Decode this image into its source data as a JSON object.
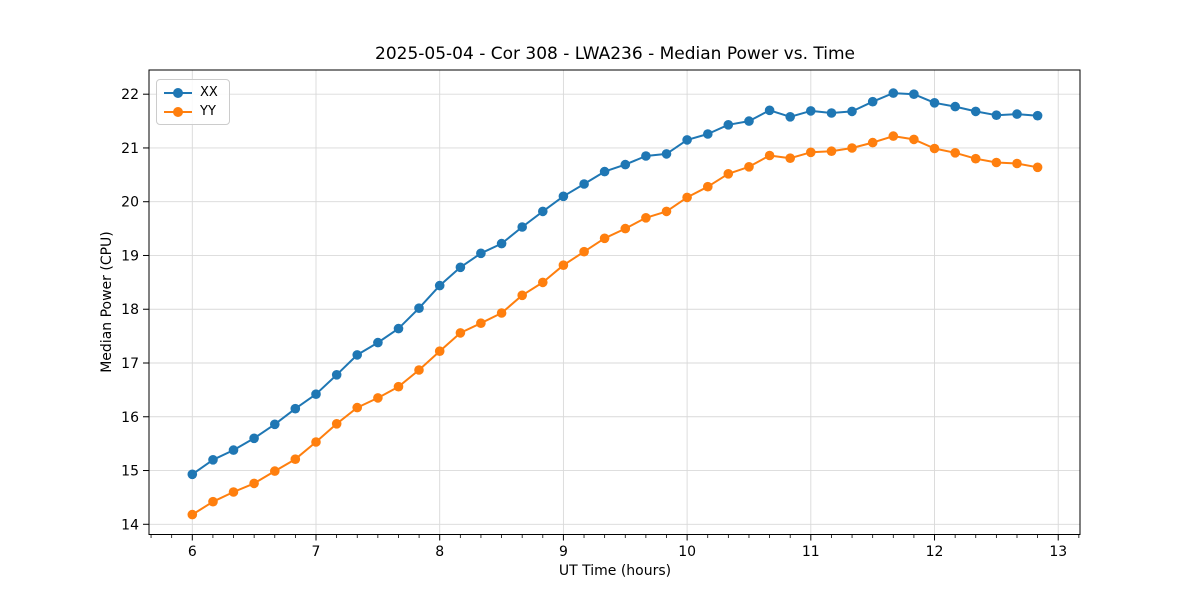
{
  "chart_data": {
    "type": "line",
    "title": "2025-05-04 - Cor 308 - LWA236 - Median Power vs. Time",
    "xlabel": "UT Time (hours)",
    "ylabel": "Median Power (CPU)",
    "xlim": [
      5.65,
      13.176
    ],
    "ylim": [
      13.81,
      22.45
    ],
    "xticks": [
      6,
      7,
      8,
      9,
      10,
      11,
      12,
      13
    ],
    "yticks": [
      14,
      15,
      16,
      17,
      18,
      19,
      20,
      21,
      22
    ],
    "grid": true,
    "legend_position": "upper left",
    "marker": "circle",
    "x": [
      6,
      6.167,
      6.333,
      6.5,
      6.667,
      6.833,
      7,
      7.167,
      7.333,
      7.5,
      7.667,
      7.833,
      8,
      8.167,
      8.333,
      8.5,
      8.667,
      8.833,
      9,
      9.167,
      9.333,
      9.5,
      9.667,
      9.833,
      10,
      10.167,
      10.333,
      10.5,
      10.667,
      10.833,
      11,
      11.167,
      11.333,
      11.5,
      11.667,
      11.833,
      12,
      12.167,
      12.333,
      12.5,
      12.667,
      12.833
    ],
    "series": [
      {
        "name": "XX",
        "color": "#1f77b4",
        "values": [
          14.93,
          15.2,
          15.38,
          15.6,
          15.86,
          16.15,
          16.42,
          16.78,
          17.15,
          17.38,
          17.64,
          18.02,
          18.44,
          18.78,
          19.04,
          19.22,
          19.53,
          19.82,
          20.1,
          20.33,
          20.56,
          20.69,
          20.85,
          20.89,
          21.15,
          21.26,
          21.43,
          21.5,
          21.7,
          21.58,
          21.69,
          21.65,
          21.68,
          21.86,
          22.02,
          22.0,
          21.84,
          21.77,
          21.68,
          21.61,
          21.63,
          21.6
        ]
      },
      {
        "name": "YY",
        "color": "#ff7f0e",
        "values": [
          14.18,
          14.42,
          14.6,
          14.76,
          14.99,
          15.21,
          15.53,
          15.87,
          16.17,
          16.35,
          16.56,
          16.87,
          17.22,
          17.56,
          17.74,
          17.93,
          18.26,
          18.5,
          18.82,
          19.07,
          19.32,
          19.5,
          19.7,
          19.82,
          20.08,
          20.28,
          20.52,
          20.65,
          20.86,
          20.81,
          20.92,
          20.94,
          21.0,
          21.1,
          21.22,
          21.16,
          20.99,
          20.91,
          20.8,
          20.73,
          20.71,
          20.64
        ]
      }
    ]
  }
}
